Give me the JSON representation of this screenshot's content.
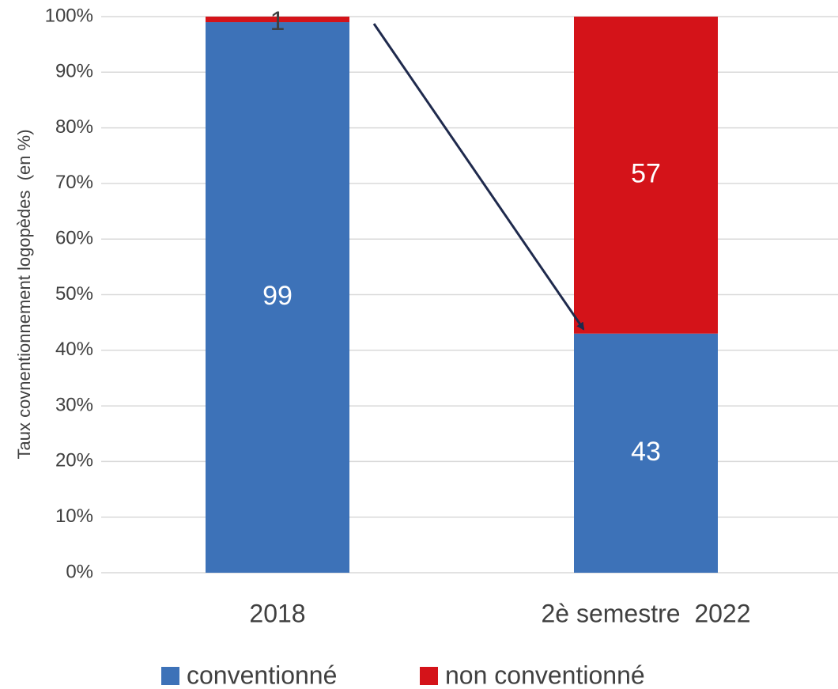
{
  "chart_data": {
    "type": "stacked_bar",
    "y_label": "Taux covnentionnement logopèdes  (en %)",
    "categories": [
      "2018",
      "2è semestre  2022"
    ],
    "series": [
      {
        "name": "conventionné",
        "color": "#3d72b8",
        "values": [
          99,
          43
        ]
      },
      {
        "name": "non conventionné",
        "color": "#d41319",
        "values": [
          1,
          57
        ]
      }
    ],
    "ylim": [
      0,
      100
    ],
    "yticks": [
      {
        "value": 0,
        "label": "0%"
      },
      {
        "value": 10,
        "label": "10%"
      },
      {
        "value": 20,
        "label": "20%"
      },
      {
        "value": 30,
        "label": "30%"
      },
      {
        "value": 40,
        "label": "40%"
      },
      {
        "value": 50,
        "label": "50%"
      },
      {
        "value": 60,
        "label": "60%"
      },
      {
        "value": 70,
        "label": "70%"
      },
      {
        "value": 80,
        "label": "80%"
      },
      {
        "value": 90,
        "label": "90%"
      },
      {
        "value": 100,
        "label": "100%"
      }
    ],
    "grid": true,
    "legend": "bottom"
  }
}
